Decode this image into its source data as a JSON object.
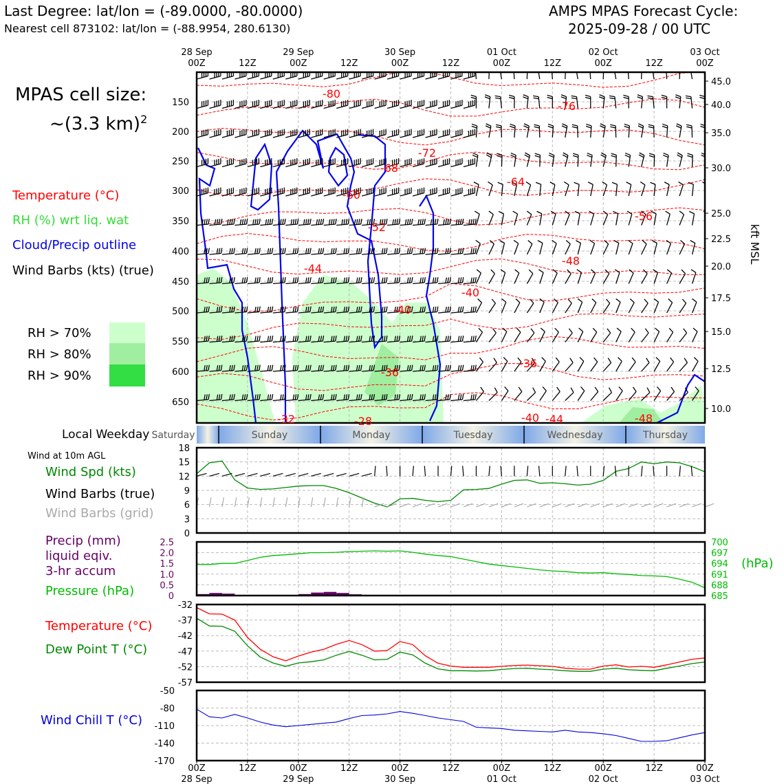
{
  "header": {
    "last_degree": "Last Degree: lat/lon = (-89.0000, -80.0000)",
    "nearest_cell": "Nearest cell 873102: lat/lon = (-88.9954, 280.6130)",
    "cycle_title": "AMPS MPAS Forecast Cycle:",
    "cycle_time": "2025-09-28 / 00 UTC"
  },
  "cell_size": {
    "line1": "MPAS cell size:",
    "line2": "~(3.3 km)",
    "sup": "2"
  },
  "legend_top": {
    "temperature": "Temperature (°C)",
    "rh": "RH (%) wrt liq. wat",
    "cloud": "Cloud/Precip outline",
    "wind": "Wind Barbs (kts) (true)",
    "rh70": "RH > 70%",
    "rh80": "RH > 80%",
    "rh90": "RH > 90%"
  },
  "colors": {
    "temperature": "#ff0000",
    "rh_text": "#33dd33",
    "cloud": "#0000ee",
    "rh70": "#ccffcc",
    "rh80": "#a0eea0",
    "rh90": "#33dd44",
    "wind_speed": "#008800",
    "dewpoint": "#008800",
    "pressure": "#00bb00",
    "precip": "#660066",
    "windchill": "#0000dd",
    "grid_barb": "#aaaaaa"
  },
  "time_axis": {
    "top_labels": [
      {
        "l1": "28 Sep",
        "l2": "00Z"
      },
      {
        "l1": "",
        "l2": "12Z"
      },
      {
        "l1": "29 Sep",
        "l2": "00Z"
      },
      {
        "l1": "",
        "l2": "12Z"
      },
      {
        "l1": "30 Sep",
        "l2": "00Z"
      },
      {
        "l1": "",
        "l2": "12Z"
      },
      {
        "l1": "01 Oct",
        "l2": "00Z"
      },
      {
        "l1": "",
        "l2": "12Z"
      },
      {
        "l1": "02 Oct",
        "l2": "00Z"
      },
      {
        "l1": "",
        "l2": "12Z"
      },
      {
        "l1": "03 Oct",
        "l2": "00Z"
      }
    ],
    "bottom_labels": [
      {
        "l1": "00Z",
        "l2": "28 Sep"
      },
      {
        "l1": "12Z",
        "l2": ""
      },
      {
        "l1": "00Z",
        "l2": "29 Sep"
      },
      {
        "l1": "12Z",
        "l2": ""
      },
      {
        "l1": "00Z",
        "l2": "30 Sep"
      },
      {
        "l1": "12Z",
        "l2": ""
      },
      {
        "l1": "00Z",
        "l2": "01 Oct"
      },
      {
        "l1": "12Z",
        "l2": ""
      },
      {
        "l1": "00Z",
        "l2": "02 Oct"
      },
      {
        "l1": "12Z",
        "l2": ""
      },
      {
        "l1": "00Z",
        "l2": "03 Oct"
      }
    ]
  },
  "weekday": {
    "label": "Local Weekday",
    "days": [
      "Saturday",
      "Sunday",
      "Monday",
      "Tuesday",
      "Wednesday",
      "Thursday"
    ]
  },
  "chart_data": [
    {
      "type": "heatmap",
      "id": "cross-section",
      "x_hours": [
        0,
        120
      ],
      "y_left_ticks": [
        "150",
        "200",
        "250",
        "300",
        "350",
        "400",
        "450",
        "500",
        "550",
        "600",
        "650"
      ],
      "y_right_ticks": [
        "45.0",
        "40.0",
        "35.0",
        "30.0",
        "25.0",
        "22.5",
        "20.0",
        "17.5",
        "15.0",
        "12.5",
        "10.0"
      ],
      "y_right_label": "kft MSL",
      "temperature_labels": [
        "-80",
        "-76",
        "-72",
        "-68",
        "-64",
        "-60",
        "-56",
        "-52",
        "-48",
        "-44",
        "-40",
        "-40",
        "-36",
        "-36",
        "-32",
        "-28",
        "-40",
        "-44",
        "-48"
      ],
      "grid": true
    },
    {
      "type": "line",
      "id": "wind",
      "title": "Wind at 10m AGL",
      "series_label_speed": "Wind Spd (kts)",
      "series_label_barbs": "Wind Barbs (true)",
      "series_label_grid": "Wind Barbs (grid)",
      "ylim": [
        0,
        18
      ],
      "yticks": [
        "0",
        "3",
        "6",
        "9",
        "12",
        "15",
        "18"
      ],
      "x_hours": [
        0,
        3,
        6,
        9,
        12,
        15,
        18,
        21,
        24,
        27,
        30,
        33,
        36,
        39,
        42,
        45,
        48,
        51,
        54,
        57,
        60,
        63,
        66,
        69,
        72,
        75,
        78,
        81,
        84,
        87,
        90,
        93,
        96,
        99,
        102,
        105,
        108,
        111,
        114,
        117,
        120
      ],
      "speed": [
        12.5,
        14.8,
        15.2,
        11.2,
        9.5,
        9.2,
        9.3,
        9.6,
        9.9,
        10.0,
        10.0,
        9.4,
        8.5,
        7.4,
        6.3,
        5.5,
        7.2,
        7.3,
        6.9,
        6.6,
        6.9,
        9.1,
        9.2,
        9.4,
        10.3,
        11.1,
        11.2,
        10.5,
        10.6,
        10.4,
        10.1,
        10.3,
        11.1,
        13.0,
        13.6,
        15.0,
        14.6,
        15.0,
        14.8,
        14.0,
        12.9
      ]
    },
    {
      "type": "line",
      "id": "precip-pressure",
      "series_label_precip": "Precip (mm)",
      "series_label_precip2": "liquid eqiv.",
      "series_label_precip3": "3-hr accum",
      "series_label_pressure": "Pressure (hPa)",
      "y_left_label": "(hPa)",
      "ylim_left": [
        0,
        2.5
      ],
      "yticks_left": [
        "0",
        "0.5",
        "1.0",
        "1.5",
        "2.0",
        "2.5"
      ],
      "ylim_right": [
        685,
        700
      ],
      "yticks_right": [
        "685",
        "688",
        "691",
        "694",
        "697",
        "700"
      ],
      "pressure_hours": [
        0,
        3,
        6,
        9,
        12,
        15,
        18,
        21,
        24,
        27,
        30,
        33,
        36,
        39,
        42,
        45,
        48,
        51,
        54,
        57,
        60,
        63,
        66,
        69,
        72,
        75,
        78,
        81,
        84,
        87,
        90,
        93,
        96,
        99,
        102,
        105,
        108,
        111,
        114,
        117,
        120
      ],
      "pressure": [
        693.7,
        693.7,
        694.0,
        694.0,
        694.8,
        695.7,
        696.2,
        696.4,
        696.7,
        697.0,
        697.0,
        697.1,
        697.3,
        697.4,
        697.5,
        697.4,
        697.5,
        697.1,
        696.6,
        696.2,
        695.9,
        695.2,
        694.5,
        693.8,
        693.4,
        693.0,
        692.6,
        692.2,
        691.9,
        691.7,
        691.4,
        691.3,
        691.4,
        691.1,
        690.9,
        690.6,
        690.5,
        690.3,
        689.6,
        688.7,
        687.2
      ],
      "precip_bars": [
        {
          "start": 0,
          "end": 3,
          "value": 0.07
        },
        {
          "start": 3,
          "end": 6,
          "value": 0.12
        },
        {
          "start": 6,
          "end": 9,
          "value": 0.09
        },
        {
          "start": 24,
          "end": 27,
          "value": 0.07
        },
        {
          "start": 27,
          "end": 30,
          "value": 0.14
        },
        {
          "start": 30,
          "end": 33,
          "value": 0.17
        },
        {
          "start": 33,
          "end": 36,
          "value": 0.12
        },
        {
          "start": 36,
          "end": 39,
          "value": 0.06
        }
      ]
    },
    {
      "type": "line",
      "id": "temp-dew",
      "series_label_temp": "Temperature (°C)",
      "series_label_dew": "Dew Point T (°C)",
      "ylim": [
        -57,
        -32
      ],
      "yticks": [
        "-32",
        "-37",
        "-42",
        "-47",
        "-52",
        "-57"
      ],
      "x_hours": [
        0,
        3,
        6,
        9,
        12,
        15,
        18,
        21,
        24,
        27,
        30,
        33,
        36,
        39,
        42,
        45,
        48,
        51,
        54,
        57,
        60,
        63,
        66,
        69,
        72,
        75,
        78,
        81,
        84,
        87,
        90,
        93,
        96,
        99,
        102,
        105,
        108,
        111,
        114,
        117,
        120
      ],
      "temperature": [
        -33.0,
        -35.0,
        -35.1,
        -37.0,
        -42.6,
        -46.4,
        -48.8,
        -50.1,
        -48.6,
        -47.3,
        -46.4,
        -44.8,
        -43.6,
        -44.9,
        -47.0,
        -46.8,
        -43.9,
        -44.9,
        -48.5,
        -50.9,
        -51.8,
        -52.2,
        -52.2,
        -52.2,
        -51.9,
        -51.6,
        -51.5,
        -51.7,
        -51.9,
        -52.5,
        -52.8,
        -52.8,
        -51.8,
        -51.4,
        -52.1,
        -51.9,
        -52.2,
        -51.4,
        -50.5,
        -49.6,
        -49.2
      ],
      "dewpoint": [
        -36.4,
        -38.9,
        -39.0,
        -40.6,
        -45.3,
        -48.9,
        -50.8,
        -51.9,
        -50.8,
        -50.4,
        -49.8,
        -48.3,
        -47.1,
        -48.3,
        -49.8,
        -49.6,
        -47.3,
        -48.2,
        -50.9,
        -52.7,
        -53.3,
        -53.3,
        -53.4,
        -53.3,
        -52.9,
        -52.6,
        -52.5,
        -52.8,
        -53.0,
        -53.3,
        -53.5,
        -53.5,
        -52.8,
        -52.5,
        -53.0,
        -53.2,
        -53.3,
        -52.5,
        -51.8,
        -51.0,
        -50.5
      ],
      "grid": true
    },
    {
      "type": "line",
      "id": "windchill",
      "series_label": "Wind Chill T (°C)",
      "ylim": [
        -170,
        -50
      ],
      "yticks": [
        "-50",
        "-80",
        "-110",
        "-140",
        "-170"
      ],
      "x_hours": [
        0,
        3,
        6,
        9,
        12,
        15,
        18,
        21,
        24,
        27,
        30,
        33,
        36,
        39,
        42,
        45,
        48,
        51,
        54,
        57,
        60,
        63,
        66,
        69,
        72,
        75,
        78,
        81,
        84,
        87,
        90,
        93,
        96,
        99,
        102,
        105,
        108,
        111,
        114,
        117,
        120
      ],
      "windchill": [
        -82,
        -95,
        -97,
        -91,
        -97,
        -104,
        -109,
        -112,
        -110,
        -108,
        -106,
        -104,
        -98,
        -93,
        -92,
        -90,
        -86,
        -89,
        -93,
        -97,
        -100,
        -103,
        -113,
        -114,
        -115,
        -118,
        -119,
        -120,
        -121,
        -118,
        -121,
        -122,
        -124,
        -127,
        -132,
        -137,
        -137,
        -136,
        -131,
        -126,
        -122
      ],
      "grid": true
    }
  ]
}
